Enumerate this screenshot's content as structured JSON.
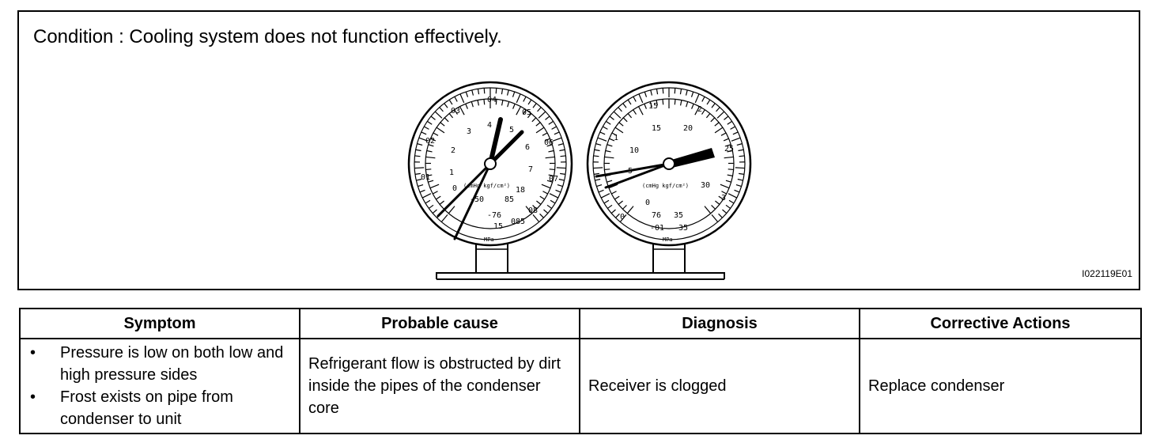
{
  "figure": {
    "condition": "Condition : Cooling system does not function effectively.",
    "figure_id": "I022119E01",
    "low_gauge": {
      "outer_numbers": [
        "03",
        "04",
        "05",
        "06",
        "07",
        "08",
        "085",
        "02",
        "01"
      ],
      "inner_numbers": [
        "4",
        "5",
        "6",
        "7",
        "3",
        "2",
        "1",
        "0"
      ],
      "scale_labels": [
        "-50",
        "85",
        "-76",
        "15",
        "18"
      ],
      "unit_label": "(cmHg kgf/cm²)",
      "mpa_label": "MPa",
      "needle_values": [
        "4",
        "5"
      ]
    },
    "high_gauge": {
      "outer_numbers": [
        "15",
        "2",
        "25",
        "3",
        "1",
        "0",
        "-01",
        "35"
      ],
      "inner_numbers": [
        "10",
        "15",
        "20",
        "30",
        "5",
        "0",
        "76",
        "35"
      ],
      "unit_label": "(cmHg kgf/cm²)",
      "mpa_label": "MPa"
    }
  },
  "table": {
    "headers": [
      "Symptom",
      "Probable cause",
      "Diagnosis",
      "Corrective Actions"
    ],
    "bullet": "•",
    "symptoms": [
      "Pressure is low on both low and high pressure sides",
      "Frost exists on pipe from condenser to unit"
    ],
    "probable_cause": "Refrigerant flow is obstructed by dirt inside the pipes of the condenser core",
    "diagnosis": "Receiver is clogged",
    "corrective_action": "Replace condenser"
  }
}
